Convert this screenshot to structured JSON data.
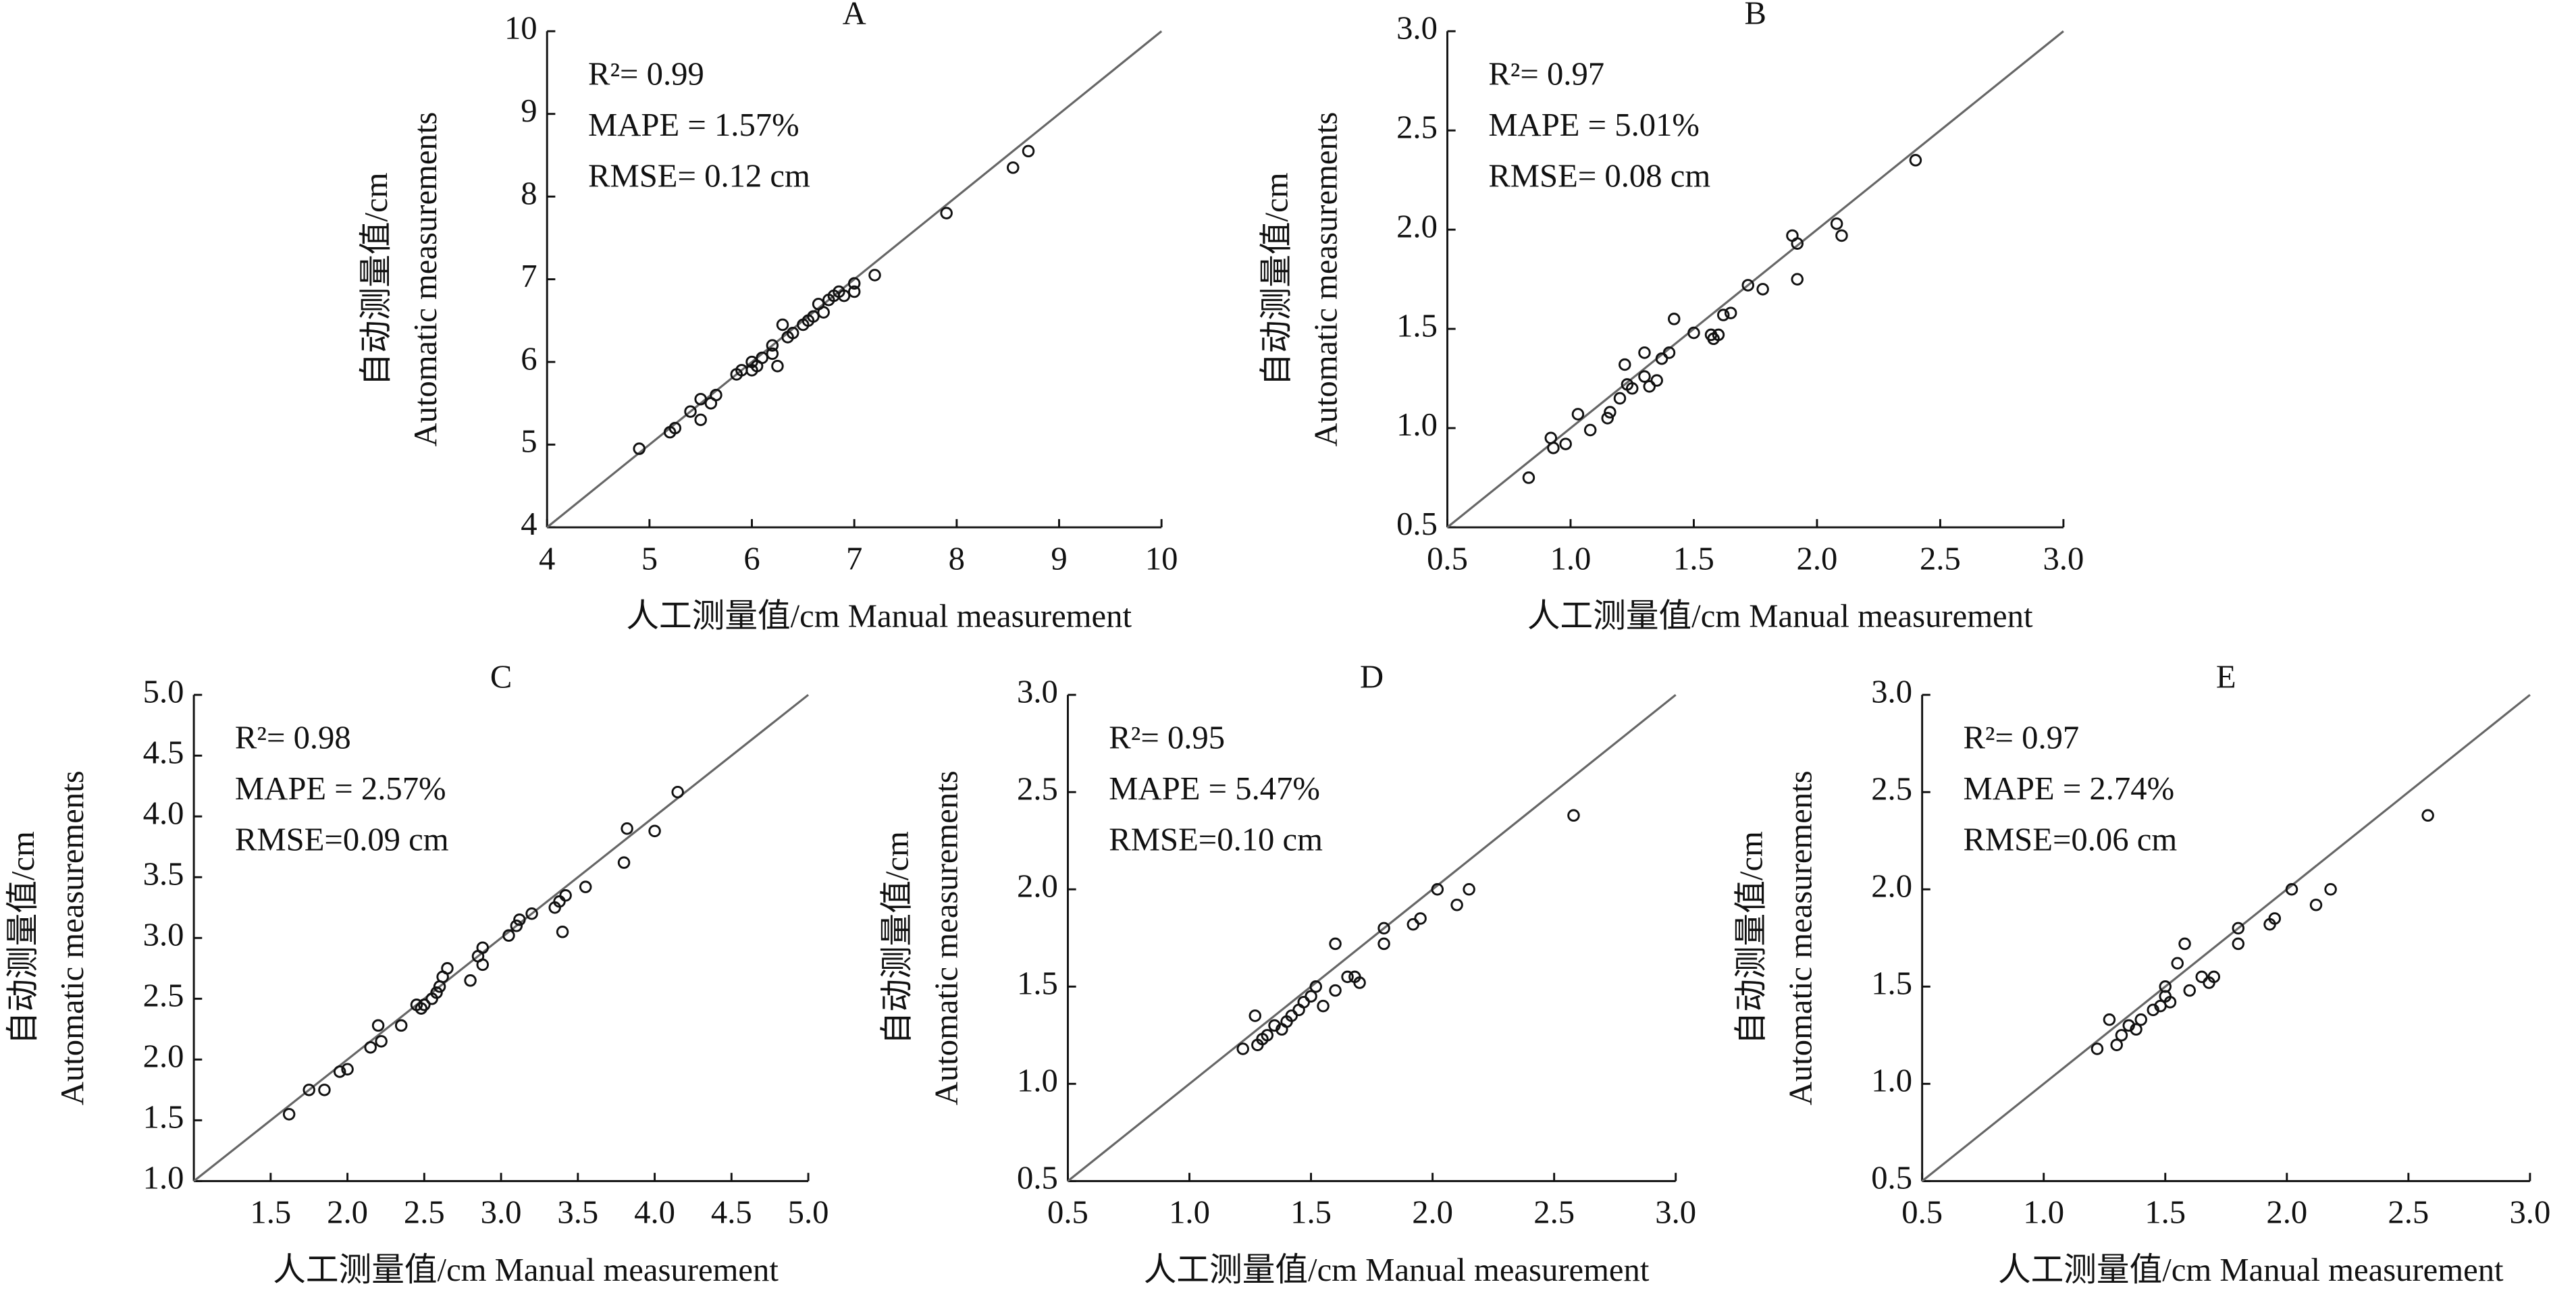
{
  "chart_data": [
    {
      "type": "scatter",
      "title": "A",
      "annotations": [
        "R²= 0.99",
        "MAPE = 1.57%",
        "RMSE= 0.12 cm"
      ],
      "x_label": "人工测量值/cm  Manual measurement",
      "y_label": [
        "自动测量值/cm",
        "Automatic measurements"
      ],
      "xlim": [
        4,
        10
      ],
      "ylim": [
        4,
        10
      ],
      "xticks": [
        4,
        5,
        6,
        7,
        8,
        9,
        10
      ],
      "yticks": [
        4,
        5,
        6,
        7,
        8,
        9,
        10
      ],
      "color": "#111111",
      "x": [
        4.9,
        5.2,
        5.25,
        5.4,
        5.5,
        5.5,
        5.6,
        5.65,
        5.85,
        5.9,
        6.0,
        6.0,
        6.05,
        6.1,
        6.2,
        6.2,
        6.25,
        6.3,
        6.35,
        6.4,
        6.5,
        6.55,
        6.6,
        6.65,
        6.7,
        6.75,
        6.8,
        6.85,
        6.9,
        7.0,
        7.0,
        7.2,
        7.9,
        8.55,
        8.7
      ],
      "values": [
        4.95,
        5.15,
        5.2,
        5.4,
        5.3,
        5.55,
        5.5,
        5.6,
        5.85,
        5.9,
        5.9,
        6.0,
        5.95,
        6.05,
        6.1,
        6.2,
        5.95,
        6.45,
        6.3,
        6.35,
        6.45,
        6.5,
        6.55,
        6.7,
        6.6,
        6.75,
        6.8,
        6.85,
        6.8,
        6.85,
        6.95,
        7.05,
        7.8,
        8.35,
        8.55
      ]
    },
    {
      "type": "scatter",
      "title": "B",
      "annotations": [
        "R²= 0.97",
        "MAPE = 5.01%",
        "RMSE= 0.08 cm"
      ],
      "x_label": "人工测量值/cm  Manual measurement",
      "y_label": [
        "自动测量值/cm",
        "Automatic measurements"
      ],
      "xlim": [
        0.5,
        3.0
      ],
      "ylim": [
        0.5,
        3.0
      ],
      "xticks": [
        0.5,
        {
          "value": 1,
          "label": "1.0"
        },
        1.5,
        {
          "value": 2,
          "label": "2.0"
        },
        2.5,
        {
          "value": 3,
          "label": "3.0"
        }
      ],
      "yticks": [
        0.5,
        {
          "value": 1,
          "label": "1.0"
        },
        1.5,
        {
          "value": 2,
          "label": "2.0"
        },
        2.5,
        {
          "value": 3,
          "label": "3.0"
        }
      ],
      "color": "#111111",
      "x": [
        0.83,
        0.92,
        0.93,
        0.98,
        1.03,
        1.08,
        1.15,
        1.16,
        1.2,
        1.22,
        1.23,
        1.25,
        1.3,
        1.3,
        1.32,
        1.35,
        1.37,
        1.4,
        1.42,
        1.5,
        1.57,
        1.58,
        1.6,
        1.62,
        1.65,
        1.72,
        1.78,
        1.9,
        1.92,
        1.92,
        2.08,
        2.1,
        2.4
      ],
      "values": [
        0.75,
        0.95,
        0.9,
        0.92,
        1.07,
        0.99,
        1.05,
        1.08,
        1.15,
        1.32,
        1.22,
        1.2,
        1.38,
        1.26,
        1.21,
        1.24,
        1.35,
        1.38,
        1.55,
        1.48,
        1.47,
        1.45,
        1.47,
        1.57,
        1.58,
        1.72,
        1.7,
        1.97,
        1.93,
        1.75,
        2.03,
        1.97,
        2.35
      ]
    },
    {
      "type": "scatter",
      "title": "C",
      "annotations": [
        "R²= 0.98",
        "MAPE = 2.57%",
        "RMSE=0.09 cm"
      ],
      "x_label": "人工测量值/cm  Manual measurement",
      "y_label": [
        "自动测量值/cm",
        "Automatic measurements"
      ],
      "xlim": [
        1,
        5
      ],
      "ylim": [
        1,
        5
      ],
      "xticks": [
        1.5,
        {
          "value": 2,
          "label": "2.0"
        },
        2.5,
        {
          "value": 3,
          "label": "3.0"
        },
        3.5,
        {
          "value": 4,
          "label": "4.0"
        },
        4.5,
        {
          "value": 5,
          "label": "5.0"
        }
      ],
      "yticks": [
        {
          "value": 1,
          "label": "1.0"
        },
        1.5,
        {
          "value": 2,
          "label": "2.0"
        },
        2.5,
        {
          "value": 3,
          "label": "3.0"
        },
        3.5,
        {
          "value": 4,
          "label": "4.0"
        },
        4.5,
        {
          "value": 5,
          "label": "5.0"
        }
      ],
      "color": "#111111",
      "x": [
        1.62,
        1.75,
        1.85,
        1.95,
        2.0,
        2.15,
        2.2,
        2.22,
        2.35,
        2.45,
        2.48,
        2.5,
        2.55,
        2.58,
        2.6,
        2.62,
        2.65,
        2.8,
        2.85,
        2.88,
        2.88,
        3.05,
        3.1,
        3.12,
        3.2,
        3.35,
        3.38,
        3.4,
        3.42,
        3.55,
        3.8,
        3.82,
        4.0,
        4.15
      ],
      "values": [
        1.55,
        1.75,
        1.75,
        1.9,
        1.92,
        2.1,
        2.28,
        2.15,
        2.28,
        2.45,
        2.42,
        2.45,
        2.5,
        2.55,
        2.6,
        2.68,
        2.75,
        2.65,
        2.85,
        2.78,
        2.92,
        3.02,
        3.1,
        3.15,
        3.2,
        3.25,
        3.3,
        3.05,
        3.35,
        3.42,
        3.62,
        3.9,
        3.88,
        4.2
      ]
    },
    {
      "type": "scatter",
      "title": "D",
      "annotations": [
        "R²= 0.95",
        "MAPE = 5.47%",
        "RMSE=0.10 cm"
      ],
      "x_label": "人工测量值/cm  Manual measurement",
      "y_label": [
        "自动测量值/cm",
        "Automatic measurements"
      ],
      "xlim": [
        0.5,
        3.0
      ],
      "ylim": [
        0.5,
        3.0
      ],
      "xticks": [
        0.5,
        {
          "value": 1,
          "label": "1.0"
        },
        1.5,
        {
          "value": 2,
          "label": "2.0"
        },
        2.5,
        {
          "value": 3,
          "label": "3.0"
        }
      ],
      "yticks": [
        0.5,
        {
          "value": 1,
          "label": "1.0"
        },
        1.5,
        {
          "value": 2,
          "label": "2.0"
        },
        2.5,
        {
          "value": 3,
          "label": "3.0"
        }
      ],
      "color": "#111111",
      "x": [
        1.22,
        1.27,
        1.28,
        1.3,
        1.32,
        1.35,
        1.38,
        1.4,
        1.42,
        1.45,
        1.47,
        1.5,
        1.52,
        1.55,
        1.6,
        1.6,
        1.65,
        1.68,
        1.7,
        1.8,
        1.8,
        1.92,
        1.95,
        2.02,
        2.1,
        2.15,
        2.58
      ],
      "values": [
        1.18,
        1.35,
        1.2,
        1.23,
        1.25,
        1.3,
        1.28,
        1.32,
        1.35,
        1.38,
        1.42,
        1.45,
        1.5,
        1.4,
        1.48,
        1.72,
        1.55,
        1.55,
        1.52,
        1.8,
        1.72,
        1.82,
        1.85,
        2.0,
        1.92,
        2.0,
        2.38
      ]
    },
    {
      "type": "scatter",
      "title": "E",
      "annotations": [
        "R²= 0.97",
        "MAPE = 2.74%",
        "RMSE=0.06 cm"
      ],
      "x_label": "人工测量值/cm  Manual measurement",
      "y_label": [
        "自动测量值/cm",
        "Automatic measurements"
      ],
      "xlim": [
        0.5,
        3.0
      ],
      "ylim": [
        0.5,
        3.0
      ],
      "xticks": [
        0.5,
        {
          "value": 1,
          "label": "1.0"
        },
        1.5,
        {
          "value": 2,
          "label": "2.0"
        },
        2.5,
        {
          "value": 3,
          "label": "3.0"
        }
      ],
      "yticks": [
        0.5,
        {
          "value": 1,
          "label": "1.0"
        },
        1.5,
        {
          "value": 2,
          "label": "2.0"
        },
        2.5,
        {
          "value": 3,
          "label": "3.0"
        }
      ],
      "color": "#111111",
      "x": [
        1.22,
        1.27,
        1.3,
        1.32,
        1.35,
        1.38,
        1.4,
        1.45,
        1.48,
        1.5,
        1.5,
        1.52,
        1.55,
        1.58,
        1.6,
        1.65,
        1.68,
        1.7,
        1.8,
        1.8,
        1.93,
        1.95,
        2.02,
        2.12,
        2.18,
        2.58
      ],
      "values": [
        1.18,
        1.33,
        1.2,
        1.25,
        1.3,
        1.28,
        1.33,
        1.38,
        1.4,
        1.45,
        1.5,
        1.42,
        1.62,
        1.72,
        1.48,
        1.55,
        1.52,
        1.55,
        1.8,
        1.72,
        1.82,
        1.85,
        2.0,
        1.92,
        2.0,
        2.38
      ]
    }
  ]
}
